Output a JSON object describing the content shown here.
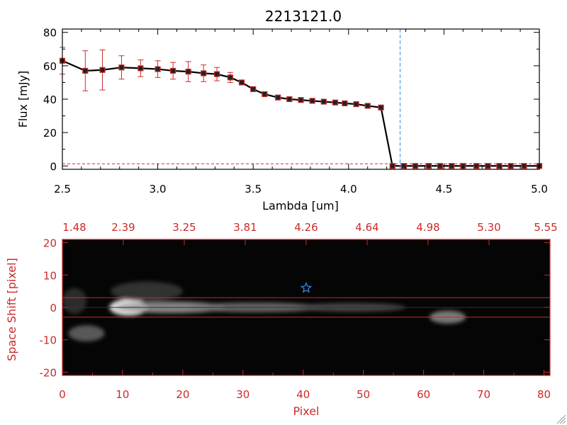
{
  "chart_data": [
    {
      "type": "line",
      "title": "2213121.0",
      "xlabel": "Lambda [um]",
      "ylabel": "Flux [mJy]",
      "xlim": [
        2.5,
        5.0
      ],
      "ylim": [
        -2,
        82
      ],
      "xticks": [
        "2.5",
        "3.0",
        "3.5",
        "4.0",
        "4.5",
        "5.0"
      ],
      "yticks": [
        "0",
        "20",
        "40",
        "60",
        "80"
      ],
      "grid": false,
      "vline_x": 4.27,
      "series": [
        {
          "x": [
            2.5,
            2.62,
            2.71,
            2.81,
            2.91,
            3.0,
            3.08,
            3.16,
            3.24,
            3.31,
            3.38,
            3.44,
            3.5,
            3.56,
            3.63,
            3.69,
            3.75,
            3.81,
            3.87,
            3.93,
            3.98,
            4.04,
            4.1,
            4.17,
            4.23,
            4.29,
            4.35,
            4.42,
            4.48,
            4.54,
            4.6,
            4.67,
            4.73,
            4.79,
            4.85,
            4.92,
            5.0
          ],
          "y": [
            63,
            57,
            57.5,
            59,
            58.5,
            58,
            57,
            56.5,
            55.5,
            55,
            53,
            50,
            46,
            43,
            41,
            40,
            39.5,
            39,
            38.5,
            38,
            37.5,
            37,
            36,
            35,
            0,
            0,
            0,
            0,
            0,
            0,
            0,
            0,
            0,
            0,
            0,
            0,
            0
          ],
          "yerr": [
            8,
            12,
            12,
            7,
            5,
            5,
            5,
            6,
            5,
            4,
            3,
            0,
            0,
            0,
            0,
            0,
            0,
            0,
            0,
            0,
            0,
            0,
            0,
            0,
            0,
            0,
            0,
            0,
            0,
            0,
            0,
            0,
            0,
            0,
            0,
            0,
            0
          ]
        }
      ]
    },
    {
      "type": "heatmap",
      "xlabel": "Pixel",
      "ylabel": "Space Shift [pixel]",
      "xlim": [
        0,
        81
      ],
      "ylim": [
        -21,
        21
      ],
      "xticks": [
        "0",
        "10",
        "20",
        "30",
        "40",
        "50",
        "60",
        "70",
        "80"
      ],
      "yticks": [
        "-20",
        "-10",
        "0",
        "10",
        "20"
      ],
      "top_ticks": [
        "1.48",
        "2.39",
        "3.25",
        "3.81",
        "4.26",
        "4.64",
        "4.98",
        "5.30",
        "5.55"
      ],
      "hlines_y": [
        3,
        -3
      ],
      "star": {
        "x": 40.5,
        "y": 6
      },
      "blobs": [
        {
          "x": 11,
          "y": 0,
          "sx": 3.2,
          "sy": 2.6,
          "a": 1.0
        },
        {
          "x": 18,
          "y": 0,
          "sx": 9,
          "sy": 1.8,
          "a": 0.6
        },
        {
          "x": 32,
          "y": 0,
          "sx": 11,
          "sy": 1.5,
          "a": 0.45
        },
        {
          "x": 48,
          "y": 0,
          "sx": 9,
          "sy": 1.3,
          "a": 0.32
        },
        {
          "x": 14,
          "y": 5,
          "sx": 6,
          "sy": 3,
          "a": 0.22
        },
        {
          "x": 4,
          "y": -8,
          "sx": 3,
          "sy": 2.5,
          "a": 0.4
        },
        {
          "x": 64,
          "y": -3,
          "sx": 3,
          "sy": 2,
          "a": 0.55
        },
        {
          "x": 2,
          "y": 2,
          "sx": 2,
          "sy": 4,
          "a": 0.2
        }
      ]
    }
  ]
}
